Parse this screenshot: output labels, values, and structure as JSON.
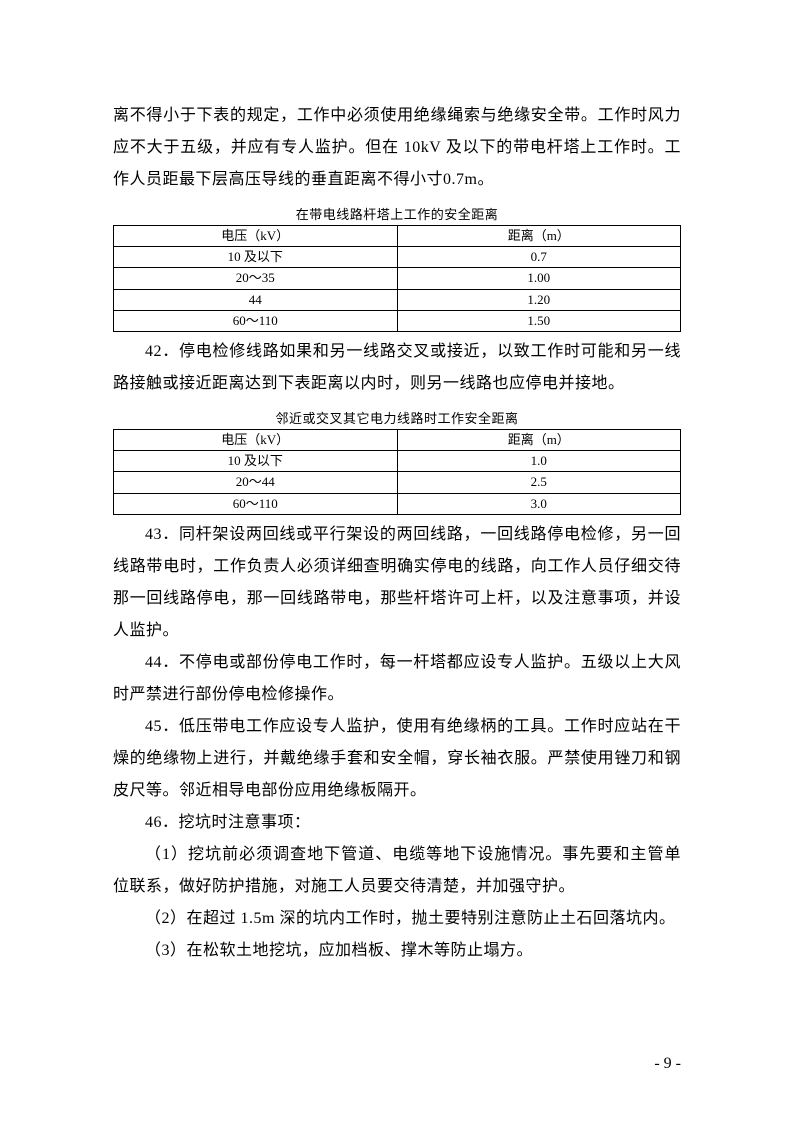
{
  "paragraphs": {
    "p1": "离不得小于下表的规定，工作中必须使用绝缘绳索与绝缘安全带。工作时风力应不大于五级，并应有专人监护。但在 10kV 及以下的带电杆塔上工作时。工作人员距最下层高压导线的垂直距离不得小寸0.7m。",
    "p42": "42．停电检修线路如果和另一线路交叉或接近，以致工作时可能和另一线路接触或接近距离达到下表距离以内时，则另一线路也应停电并接地。",
    "p43": "43．同杆架设两回线或平行架设的两回线路，一回线路停电检修，另一回线路带电时，工作负责人必须详细查明确实停电的线路，向工作人员仔细交待那一回线路停电，那一回线路带电，那些杆塔许可上杆，以及注意事项，并设人监护。",
    "p44": "44．不停电或部份停电工作时，每一杆塔都应设专人监护。五级以上大风时严禁进行部份停电检修操作。",
    "p45": "45．低压带电工作应设专人监护，使用有绝缘柄的工具。工作时应站在干燥的绝缘物上进行，并戴绝缘手套和安全帽，穿长袖衣服。严禁使用锉刀和钢皮尺等。邻近相导电部份应用绝缘板隔开。",
    "p46": "46．挖坑时注意事项：",
    "p46_1": "（1）挖坑前必须调查地下管道、电缆等地下设施情况。事先要和主管单位联系，做好防护措施，对施工人员要交待清楚，并加强守护。",
    "p46_2": "（2）在超过 1.5m 深的坑内工作时，抛土要特别注意防止土石回落坑内。",
    "p46_3": "（3）在松软土地挖坑，应加档板、撑木等防止塌方。"
  },
  "table1": {
    "title": "在带电线路杆塔上工作的安全距离",
    "columns": [
      "电压（kV）",
      "距离（m）"
    ],
    "rows": [
      [
        "10 及以下",
        "0.7"
      ],
      [
        "20～35",
        "1.00"
      ],
      [
        "44",
        "1.20"
      ],
      [
        "60～110",
        "1.50"
      ]
    ]
  },
  "table2": {
    "title": "邻近或交叉其它电力线路时工作安全距离",
    "columns": [
      "电压（kV）",
      "距离（m）"
    ],
    "rows": [
      [
        "10 及以下",
        "1.0"
      ],
      [
        "20～44",
        "2.5"
      ],
      [
        "60～110",
        "3.0"
      ]
    ]
  },
  "pageNumber": "- 9 -"
}
